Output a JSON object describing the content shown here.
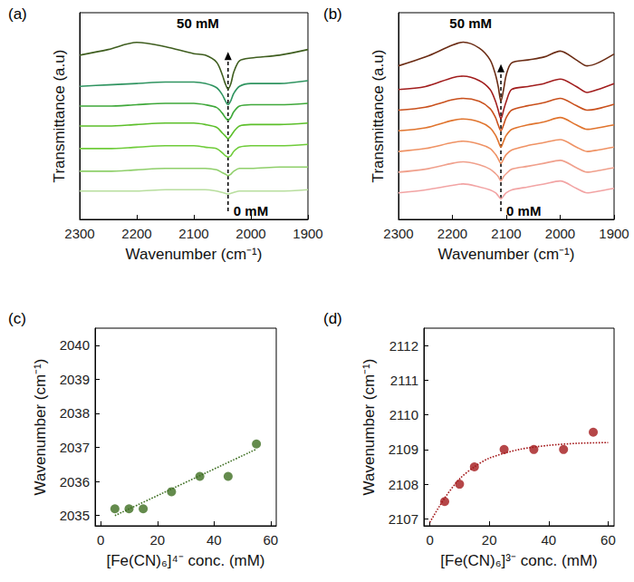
{
  "chart_data": [
    {
      "type": "line",
      "title": "(a)",
      "x_label": "Wavenumber (cm⁻¹)",
      "y_label": "Transmittance (a.u)",
      "annotations": [
        "50 mM",
        "0 mM"
      ],
      "x": [
        2300,
        2250,
        2200,
        2150,
        2100,
        2080,
        2060,
        2050,
        2045,
        2040,
        2035,
        2030,
        2020,
        2000,
        1950,
        1900
      ],
      "series": [
        {
          "color": "#3f5e1f",
          "values": [
            6.3,
            6.5,
            6.75,
            6.6,
            6.35,
            6.3,
            6.05,
            5.6,
            5.3,
            5.1,
            5.3,
            5.7,
            6.1,
            6.2,
            6.3,
            6.5
          ]
        },
        {
          "color": "#2f9460",
          "values": [
            5.2,
            5.25,
            5.3,
            5.35,
            5.35,
            5.3,
            5.15,
            4.9,
            4.7,
            4.55,
            4.7,
            4.95,
            5.2,
            5.3,
            5.3,
            5.4
          ]
        },
        {
          "color": "#3fa83a",
          "values": [
            4.5,
            4.5,
            4.55,
            4.6,
            4.6,
            4.55,
            4.45,
            4.25,
            4.1,
            4.0,
            4.1,
            4.3,
            4.5,
            4.55,
            4.55,
            4.6
          ]
        },
        {
          "color": "#5cbf2a",
          "values": [
            3.8,
            3.8,
            3.85,
            3.9,
            3.9,
            3.85,
            3.75,
            3.55,
            3.45,
            3.35,
            3.45,
            3.6,
            3.8,
            3.85,
            3.85,
            3.9
          ]
        },
        {
          "color": "#6fcc3a",
          "values": [
            3.0,
            3.0,
            3.05,
            3.1,
            3.1,
            3.05,
            3.0,
            2.85,
            2.75,
            2.7,
            2.75,
            2.9,
            3.05,
            3.1,
            3.1,
            3.15
          ]
        },
        {
          "color": "#8fcf6a",
          "values": [
            2.2,
            2.2,
            2.25,
            2.3,
            2.3,
            2.3,
            2.25,
            2.15,
            2.1,
            2.05,
            2.1,
            2.2,
            2.3,
            2.3,
            2.35,
            2.35
          ]
        },
        {
          "color": "#b8de9e",
          "values": [
            1.5,
            1.5,
            1.5,
            1.55,
            1.55,
            1.55,
            1.5,
            1.45,
            1.42,
            1.4,
            1.42,
            1.45,
            1.5,
            1.5,
            1.5,
            1.55
          ]
        }
      ],
      "xlim": [
        2300,
        1900
      ],
      "xticks": [
        2300,
        2200,
        2100,
        2000,
        1900
      ],
      "ylim": [
        0.5,
        7.8
      ],
      "yticks": [],
      "tick_labels": "x",
      "grid": false
    },
    {
      "type": "line",
      "title": "(b)",
      "x_label": "Wavenumber (cm⁻¹)",
      "y_label": "Transmittance (a.u)",
      "annotations": [
        "50 mM",
        "0 mM"
      ],
      "x": [
        2300,
        2250,
        2200,
        2180,
        2150,
        2130,
        2120,
        2115,
        2110,
        2105,
        2100,
        2090,
        2060,
        2030,
        2000,
        1970,
        1950,
        1930,
        1900
      ],
      "series": [
        {
          "color": "#6b2c14",
          "values": [
            6.2,
            6.5,
            6.9,
            7.0,
            6.8,
            6.4,
            5.9,
            5.5,
            5.0,
            5.4,
            5.9,
            6.3,
            6.4,
            6.5,
            6.7,
            6.4,
            6.2,
            6.3,
            6.6
          ]
        },
        {
          "color": "#a11d1d",
          "values": [
            5.4,
            5.5,
            5.8,
            5.85,
            5.7,
            5.4,
            5.0,
            4.7,
            4.4,
            4.7,
            5.0,
            5.4,
            5.5,
            5.6,
            5.75,
            5.5,
            5.3,
            5.4,
            5.6
          ]
        },
        {
          "color": "#c9501c",
          "values": [
            4.7,
            4.8,
            5.05,
            5.1,
            5.0,
            4.75,
            4.45,
            4.2,
            4.0,
            4.2,
            4.45,
            4.7,
            4.85,
            4.95,
            5.1,
            4.85,
            4.7,
            4.75,
            4.9
          ]
        },
        {
          "color": "#e0742e",
          "values": [
            4.0,
            4.1,
            4.35,
            4.4,
            4.3,
            4.1,
            3.85,
            3.65,
            3.45,
            3.65,
            3.85,
            4.05,
            4.2,
            4.3,
            4.45,
            4.2,
            4.05,
            4.1,
            4.2
          ]
        },
        {
          "color": "#ef9264",
          "values": [
            3.3,
            3.4,
            3.6,
            3.65,
            3.55,
            3.4,
            3.2,
            3.05,
            2.9,
            3.05,
            3.2,
            3.35,
            3.5,
            3.6,
            3.7,
            3.45,
            3.3,
            3.35,
            3.45
          ]
        },
        {
          "color": "#f0a08c",
          "values": [
            2.6,
            2.7,
            2.9,
            2.95,
            2.85,
            2.7,
            2.55,
            2.45,
            2.3,
            2.45,
            2.55,
            2.7,
            2.8,
            2.9,
            3.0,
            2.75,
            2.6,
            2.65,
            2.75
          ]
        },
        {
          "color": "#f2a4a4",
          "values": [
            1.9,
            2.0,
            2.15,
            2.2,
            2.1,
            2.0,
            1.9,
            1.8,
            1.7,
            1.8,
            1.9,
            2.0,
            2.1,
            2.2,
            2.3,
            2.05,
            1.9,
            1.95,
            2.05
          ]
        }
      ],
      "xlim": [
        2300,
        1900
      ],
      "xticks": [
        2300,
        2200,
        2100,
        2000,
        1900
      ],
      "ylim": [
        1.0,
        8.0
      ],
      "yticks": [],
      "tick_labels": "x",
      "grid": false
    },
    {
      "type": "scatter",
      "title": "(c)",
      "x_label": "[Fe(CN)₆]⁴⁻ conc. (mM)",
      "y_label": "Wavenumber (cm⁻¹)",
      "series": [
        {
          "type": "scatter",
          "marker": "circle",
          "color": "#3d6e21",
          "x": [
            5,
            10,
            15,
            25,
            35,
            45,
            55
          ],
          "values": [
            2035.2,
            2035.2,
            2035.2,
            2035.7,
            2036.15,
            2036.15,
            2037.1
          ]
        },
        {
          "type": "line",
          "line_style": "dotted",
          "color": "#3d6e21",
          "x": [
            5,
            55
          ],
          "values": [
            2035.0,
            2036.95
          ]
        }
      ],
      "xlim": [
        -2,
        62
      ],
      "xticks": [
        0,
        20,
        40,
        60
      ],
      "ylim": [
        2034.7,
        2040.5
      ],
      "yticks": [
        2035,
        2036,
        2037,
        2038,
        2039,
        2040
      ],
      "grid": false
    },
    {
      "type": "scatter",
      "title": "(d)",
      "x_label": "[Fe(CN)₆]³⁻ conc. (mM)",
      "y_label": "Wavenumber (cm⁻¹)",
      "series": [
        {
          "type": "scatter",
          "marker": "circle",
          "color": "#a3181a",
          "x": [
            5,
            10,
            15,
            25,
            35,
            45,
            55
          ],
          "values": [
            2107.5,
            2108.0,
            2108.5,
            2109.0,
            2109.0,
            2109.0,
            2109.5
          ]
        },
        {
          "type": "line",
          "line_style": "dotted",
          "color": "#a3181a",
          "x": [
            0,
            5,
            10,
            15,
            20,
            30,
            40,
            50,
            60
          ],
          "values": [
            2106.9,
            2107.6,
            2108.15,
            2108.5,
            2108.75,
            2109.0,
            2109.12,
            2109.18,
            2109.2
          ]
        }
      ],
      "xlim": [
        -2,
        62
      ],
      "xticks": [
        0,
        20,
        40,
        60
      ],
      "ylim": [
        2106.8,
        2112.5
      ],
      "yticks": [
        2107,
        2108,
        2109,
        2110,
        2111,
        2112
      ],
      "grid": false
    }
  ]
}
